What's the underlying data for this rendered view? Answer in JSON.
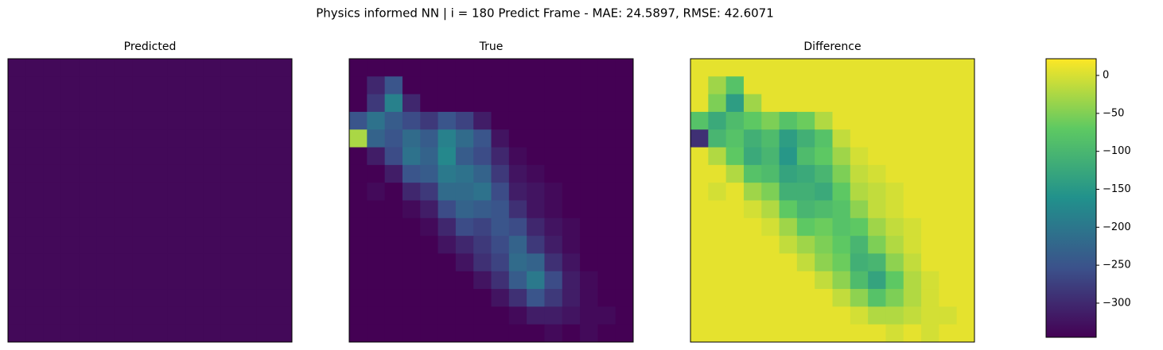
{
  "title": "Physics informed NN | i = 180 Predict Frame - MAE: 24.5897, RMSE: 42.6071",
  "chart_data": [
    {
      "type": "heatmap",
      "title": "Predicted",
      "colormap": "viridis",
      "clim": [
        0,
        345
      ],
      "values": [
        [
          8,
          8,
          8,
          8,
          8,
          8,
          8,
          8,
          8,
          8,
          8,
          8,
          8,
          8,
          8,
          8
        ],
        [
          8,
          8,
          8,
          8,
          8,
          8,
          8,
          8,
          8,
          8,
          8,
          8,
          8,
          8,
          8,
          8
        ],
        [
          8,
          8,
          8,
          8,
          8,
          8,
          8,
          8,
          8,
          8,
          8,
          8,
          8,
          8,
          8,
          8
        ],
        [
          8,
          8,
          8,
          8,
          8,
          8,
          8,
          8,
          8,
          8,
          8,
          8,
          8,
          8,
          8,
          8
        ],
        [
          8,
          8,
          8,
          8,
          8,
          8,
          8,
          8,
          8,
          8,
          8,
          8,
          8,
          8,
          8,
          8
        ],
        [
          8,
          8,
          8,
          8,
          8,
          8,
          8,
          8,
          8,
          8,
          8,
          8,
          8,
          8,
          8,
          8
        ],
        [
          8,
          8,
          8,
          8,
          8,
          8,
          8,
          8,
          8,
          8,
          8,
          8,
          8,
          8,
          8,
          8
        ],
        [
          8,
          8,
          8,
          8,
          8,
          8,
          8,
          8,
          8,
          8,
          8,
          8,
          8,
          8,
          8,
          8
        ],
        [
          8,
          8,
          8,
          8,
          8,
          8,
          8,
          8,
          8,
          8,
          8,
          8,
          8,
          8,
          8,
          8
        ],
        [
          8,
          8,
          8,
          8,
          8,
          8,
          8,
          8,
          8,
          8,
          8,
          8,
          8,
          8,
          8,
          8
        ],
        [
          8,
          8,
          8,
          8,
          8,
          8,
          8,
          8,
          8,
          8,
          8,
          8,
          8,
          8,
          8,
          8
        ],
        [
          8,
          8,
          8,
          8,
          8,
          8,
          8,
          8,
          8,
          8,
          8,
          8,
          8,
          8,
          8,
          8
        ],
        [
          8,
          8,
          8,
          8,
          8,
          8,
          8,
          8,
          8,
          8,
          8,
          8,
          8,
          8,
          8,
          8
        ],
        [
          8,
          8,
          8,
          8,
          8,
          8,
          8,
          8,
          8,
          8,
          8,
          8,
          8,
          8,
          8,
          8
        ],
        [
          8,
          8,
          8,
          8,
          8,
          8,
          8,
          8,
          8,
          8,
          8,
          8,
          8,
          8,
          8,
          8
        ],
        [
          8,
          8,
          8,
          8,
          8,
          8,
          8,
          8,
          8,
          8,
          8,
          8,
          8,
          8,
          8,
          8
        ]
      ]
    },
    {
      "type": "heatmap",
      "title": "True",
      "colormap": "viridis",
      "clim": [
        0,
        345
      ],
      "values": [
        [
          0,
          0,
          0,
          0,
          0,
          0,
          0,
          0,
          0,
          0,
          0,
          0,
          0,
          0,
          0,
          0
        ],
        [
          0,
          40,
          90,
          0,
          0,
          0,
          0,
          0,
          0,
          0,
          0,
          0,
          0,
          0,
          0,
          0
        ],
        [
          0,
          60,
          150,
          40,
          0,
          0,
          0,
          0,
          0,
          0,
          0,
          0,
          0,
          0,
          0,
          0
        ],
        [
          90,
          130,
          100,
          80,
          60,
          90,
          70,
          30,
          0,
          0,
          0,
          0,
          0,
          0,
          0,
          0
        ],
        [
          300,
          110,
          90,
          120,
          100,
          150,
          120,
          90,
          20,
          0,
          0,
          0,
          0,
          0,
          0,
          0
        ],
        [
          0,
          30,
          80,
          130,
          110,
          160,
          100,
          80,
          40,
          10,
          0,
          0,
          0,
          0,
          0,
          0
        ],
        [
          0,
          0,
          30,
          90,
          100,
          140,
          130,
          110,
          60,
          20,
          10,
          0,
          0,
          0,
          0,
          0
        ],
        [
          0,
          10,
          0,
          40,
          60,
          120,
          120,
          130,
          80,
          30,
          20,
          10,
          0,
          0,
          0,
          0
        ],
        [
          0,
          0,
          0,
          10,
          30,
          80,
          110,
          100,
          90,
          50,
          20,
          10,
          0,
          0,
          0,
          0
        ],
        [
          0,
          0,
          0,
          0,
          10,
          40,
          80,
          70,
          90,
          80,
          40,
          20,
          10,
          0,
          0,
          0
        ],
        [
          0,
          0,
          0,
          0,
          0,
          20,
          40,
          60,
          80,
          110,
          60,
          30,
          10,
          0,
          0,
          0
        ],
        [
          0,
          0,
          0,
          0,
          0,
          0,
          20,
          50,
          70,
          120,
          110,
          50,
          20,
          0,
          0,
          0
        ],
        [
          0,
          0,
          0,
          0,
          0,
          0,
          0,
          20,
          50,
          100,
          140,
          80,
          30,
          10,
          0,
          0
        ],
        [
          0,
          0,
          0,
          0,
          0,
          0,
          0,
          0,
          20,
          50,
          90,
          60,
          30,
          10,
          0,
          0
        ],
        [
          0,
          0,
          0,
          0,
          0,
          0,
          0,
          0,
          0,
          10,
          30,
          30,
          20,
          10,
          10,
          0
        ],
        [
          0,
          0,
          0,
          0,
          0,
          0,
          0,
          0,
          0,
          0,
          0,
          10,
          0,
          10,
          0,
          0
        ]
      ]
    },
    {
      "type": "heatmap",
      "title": "Difference",
      "colormap": "viridis",
      "clim": [
        -345,
        22
      ],
      "colorbar": true,
      "yticks": [
        {
          "value": 0,
          "label": "0"
        },
        {
          "value": -50,
          "label": "−50"
        },
        {
          "value": -100,
          "label": "−100"
        },
        {
          "value": -150,
          "label": "−150"
        },
        {
          "value": -200,
          "label": "−200"
        },
        {
          "value": -250,
          "label": "−250"
        },
        {
          "value": -300,
          "label": "−300"
        }
      ],
      "values": [
        [
          8,
          8,
          8,
          8,
          8,
          8,
          8,
          8,
          8,
          8,
          8,
          8,
          8,
          8,
          8,
          8
        ],
        [
          8,
          -32,
          -82,
          8,
          8,
          8,
          8,
          8,
          8,
          8,
          8,
          8,
          8,
          8,
          8,
          8
        ],
        [
          8,
          -52,
          -142,
          -32,
          8,
          8,
          8,
          8,
          8,
          8,
          8,
          8,
          8,
          8,
          8,
          8
        ],
        [
          -82,
          -122,
          -92,
          -72,
          -52,
          -82,
          -62,
          -22,
          8,
          8,
          8,
          8,
          8,
          8,
          8,
          8
        ],
        [
          -292,
          -102,
          -82,
          -112,
          -92,
          -142,
          -112,
          -82,
          -12,
          8,
          8,
          8,
          8,
          8,
          8,
          8
        ],
        [
          8,
          -22,
          -72,
          -122,
          -102,
          -152,
          -92,
          -72,
          -32,
          -2,
          8,
          8,
          8,
          8,
          8,
          8
        ],
        [
          8,
          8,
          -22,
          -82,
          -92,
          -132,
          -122,
          -102,
          -52,
          -12,
          -2,
          8,
          8,
          8,
          8,
          8
        ],
        [
          8,
          -2,
          8,
          -32,
          -52,
          -112,
          -112,
          -122,
          -72,
          -22,
          -12,
          -2,
          8,
          8,
          8,
          8
        ],
        [
          8,
          8,
          8,
          -2,
          -22,
          -72,
          -102,
          -92,
          -82,
          -42,
          -12,
          -2,
          8,
          8,
          8,
          8
        ],
        [
          8,
          8,
          8,
          8,
          -2,
          -32,
          -72,
          -62,
          -82,
          -72,
          -32,
          -12,
          -2,
          8,
          8,
          8
        ],
        [
          8,
          8,
          8,
          8,
          8,
          -12,
          -32,
          -52,
          -72,
          -102,
          -52,
          -22,
          -2,
          8,
          8,
          8
        ],
        [
          8,
          8,
          8,
          8,
          8,
          8,
          -12,
          -42,
          -62,
          -112,
          -102,
          -42,
          -12,
          8,
          8,
          8
        ],
        [
          8,
          8,
          8,
          8,
          8,
          8,
          8,
          -12,
          -42,
          -92,
          -132,
          -72,
          -22,
          -2,
          8,
          8
        ],
        [
          8,
          8,
          8,
          8,
          8,
          8,
          8,
          8,
          -12,
          -42,
          -82,
          -52,
          -22,
          -2,
          8,
          8
        ],
        [
          8,
          8,
          8,
          8,
          8,
          8,
          8,
          8,
          8,
          -2,
          -22,
          -22,
          -12,
          -2,
          -2,
          8
        ],
        [
          8,
          8,
          8,
          8,
          8,
          8,
          8,
          8,
          8,
          8,
          8,
          -2,
          8,
          -2,
          8,
          8
        ]
      ]
    }
  ]
}
